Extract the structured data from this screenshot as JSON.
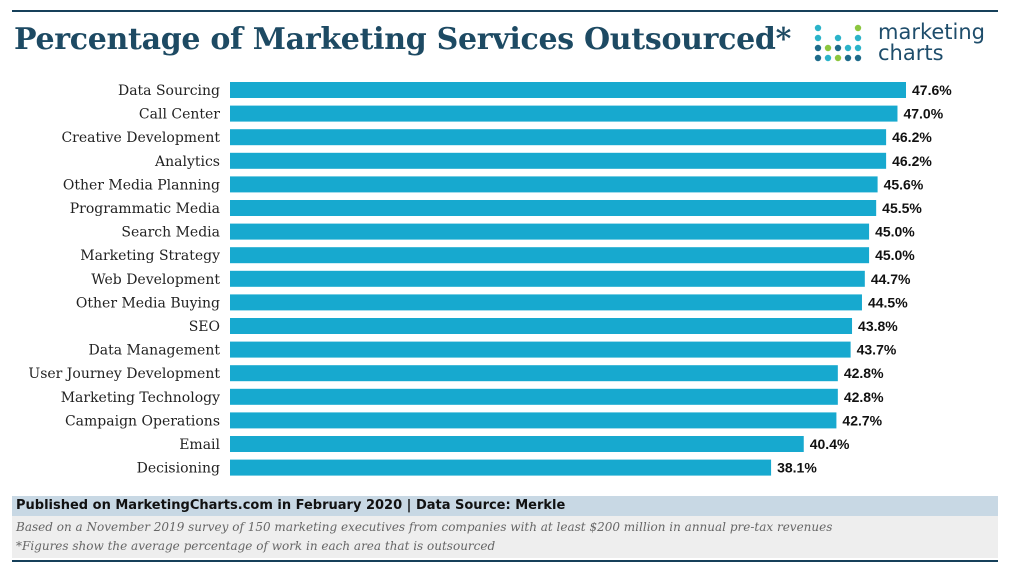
{
  "header": {
    "title": "Percentage of Marketing Services Outsourced*",
    "logo_line1": "marketing",
    "logo_line2": "charts"
  },
  "colors": {
    "bar": "#17a9cf",
    "title": "#1d4a63",
    "footer_band": "#c8d8e4"
  },
  "chart_data": {
    "type": "bar",
    "orientation": "horizontal",
    "title": "Percentage of Marketing Services Outsourced*",
    "categories": [
      "Data Sourcing",
      "Call Center",
      "Creative Development",
      "Analytics",
      "Other Media Planning",
      "Programmatic Media",
      "Search Media",
      "Marketing Strategy",
      "Web Development",
      "Other Media Buying",
      "SEO",
      "Data Management",
      "User Journey Development",
      "Marketing Technology",
      "Campaign Operations",
      "Email",
      "Decisioning"
    ],
    "values": [
      47.6,
      47.0,
      46.2,
      46.2,
      45.6,
      45.5,
      45.0,
      45.0,
      44.7,
      44.5,
      43.8,
      43.7,
      42.8,
      42.8,
      42.7,
      40.4,
      38.1
    ],
    "value_labels": [
      "47.6%",
      "47.0%",
      "46.2%",
      "46.2%",
      "45.6%",
      "45.5%",
      "45.0%",
      "45.0%",
      "44.7%",
      "44.5%",
      "43.8%",
      "43.7%",
      "42.8%",
      "42.8%",
      "42.7%",
      "40.4%",
      "38.1%"
    ],
    "xlim": [
      0,
      47.6
    ],
    "xlabel": "",
    "ylabel": "",
    "grid": false,
    "legend": "none"
  },
  "footer": {
    "published": "Published on MarketingCharts.com in February 2020 | Data Source: Merkle",
    "note1": "Based on a November 2019 survey of 150 marketing executives from companies with at least $200 million in annual pre-tax revenues",
    "note2": "*Figures show the average percentage of work in each area that is outsourced"
  }
}
